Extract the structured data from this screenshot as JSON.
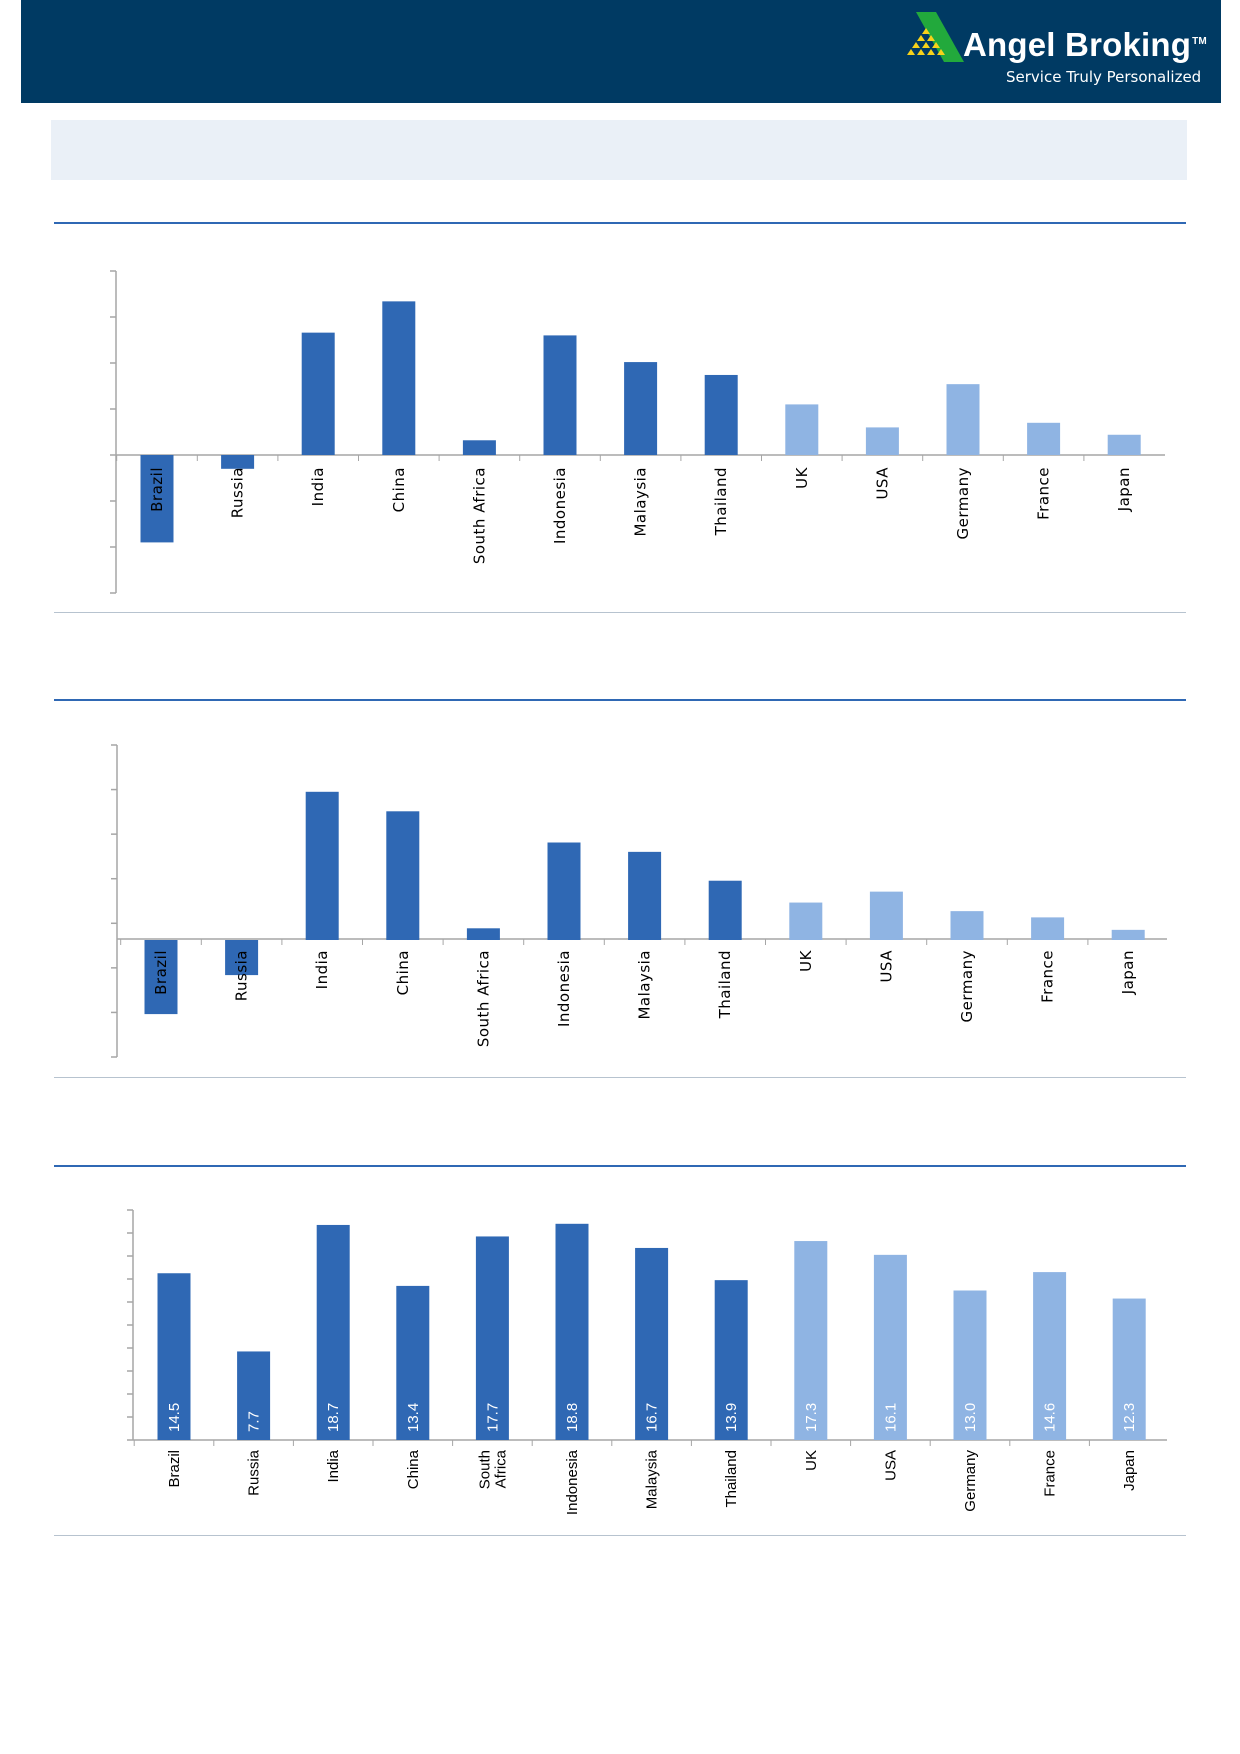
{
  "header": {
    "brand_name": "Angel Broking",
    "brand_tm": "TM",
    "tagline": "Service Truly Personalized",
    "bg_color": "#003a63",
    "logo_colors": {
      "green": "#22a93c",
      "yellow": "#f7d21a"
    }
  },
  "colors": {
    "emerging": "#2f68b4",
    "developed": "#8fb4e3",
    "rule": "#2f68b4",
    "rule_thin": "#b7c3cf",
    "axis": "#a6a6a6"
  },
  "chart_data": [
    {
      "type": "bar",
      "categories": [
        "Brazil",
        "Russia",
        "India",
        "China",
        "South Africa",
        "Indonesia",
        "Malaysia",
        "Thailand",
        "UK",
        "USA",
        "Germany",
        "France",
        "Japan"
      ],
      "group": [
        "emerging",
        "emerging",
        "emerging",
        "emerging",
        "emerging",
        "emerging",
        "emerging",
        "emerging",
        "developed",
        "developed",
        "developed",
        "developed",
        "developed"
      ],
      "values": [
        -9.5,
        -1.5,
        13.3,
        16.7,
        1.6,
        13.0,
        10.1,
        8.7,
        5.5,
        3.0,
        7.7,
        3.5,
        2.2
      ],
      "ylim": [
        -15,
        20
      ],
      "grid": false,
      "legend": "none",
      "data_labels": []
    },
    {
      "type": "bar",
      "categories": [
        "Brazil",
        "Russia",
        "India",
        "China",
        "South Africa",
        "Indonesia",
        "Malaysia",
        "Thailand",
        "UK",
        "USA",
        "Germany",
        "France",
        "Japan"
      ],
      "group": [
        "emerging",
        "emerging",
        "emerging",
        "emerging",
        "emerging",
        "emerging",
        "emerging",
        "emerging",
        "developed",
        "developed",
        "developed",
        "developed",
        "developed"
      ],
      "values": [
        -9.5,
        -4.5,
        19.0,
        16.5,
        1.5,
        12.5,
        11.3,
        7.6,
        4.8,
        6.2,
        3.7,
        2.9,
        1.3
      ],
      "ylim": [
        -15,
        25
      ],
      "grid": false,
      "legend": "none",
      "data_labels": []
    },
    {
      "type": "bar",
      "categories": [
        "Brazil",
        "Russia",
        "India",
        "China",
        "South\nAfrica",
        "Indonesia",
        "Malaysia",
        "Thailand",
        "UK",
        "USA",
        "Germany",
        "France",
        "Japan"
      ],
      "group": [
        "emerging",
        "emerging",
        "emerging",
        "emerging",
        "emerging",
        "emerging",
        "emerging",
        "emerging",
        "developed",
        "developed",
        "developed",
        "developed",
        "developed"
      ],
      "values": [
        14.5,
        7.7,
        18.7,
        13.4,
        17.7,
        18.8,
        16.7,
        13.9,
        17.3,
        16.1,
        13.0,
        14.6,
        12.3
      ],
      "ylim": [
        0,
        20
      ],
      "grid": false,
      "legend": "none",
      "data_labels": [
        "14.5",
        "7.7",
        "18.7",
        "13.4",
        "17.7",
        "18.8",
        "16.7",
        "13.9",
        "17.3",
        "16.1",
        "13.0",
        "14.6",
        "12.3"
      ]
    }
  ]
}
